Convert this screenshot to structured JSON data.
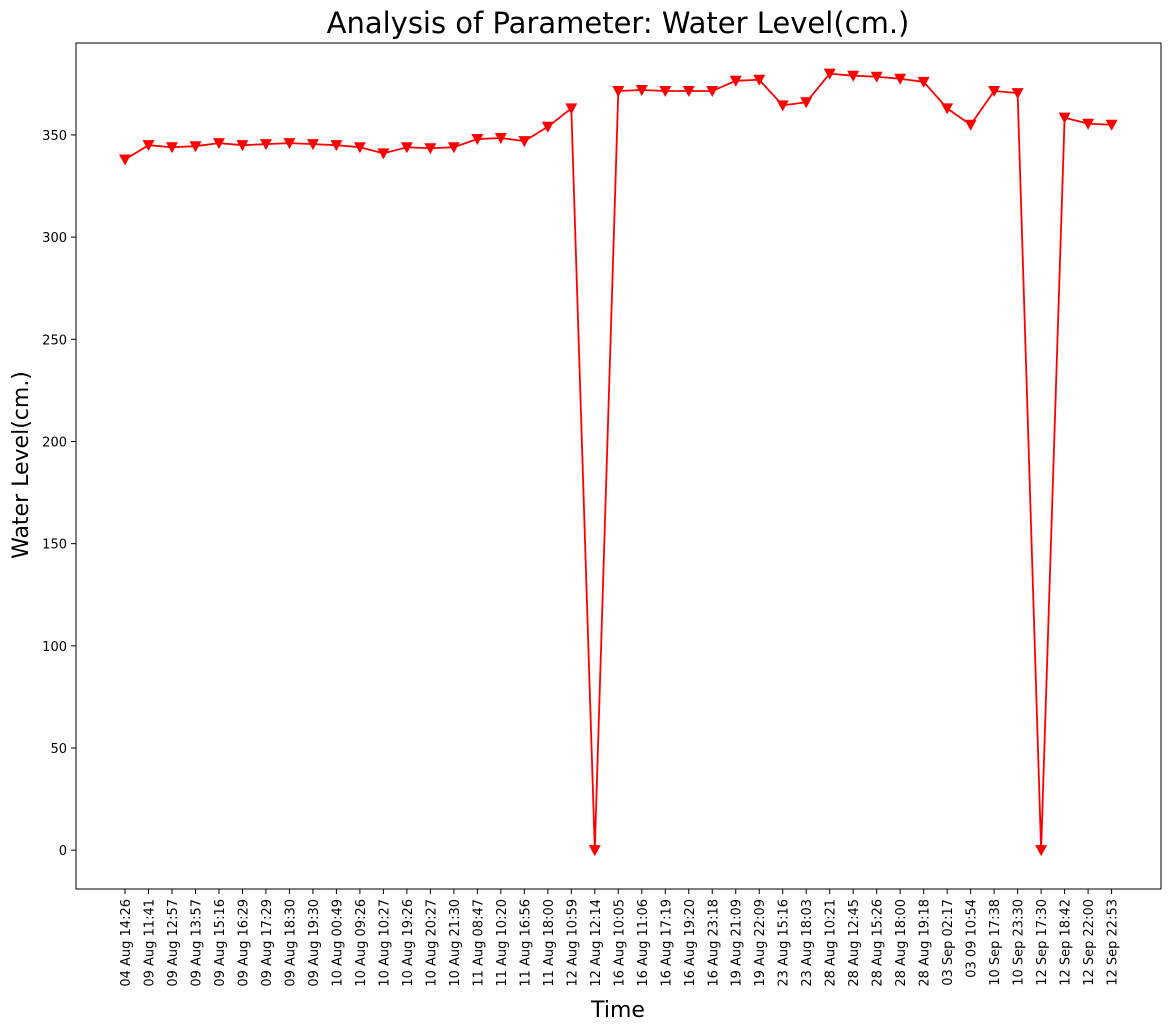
{
  "chart_data": {
    "type": "line",
    "title": "Analysis of Parameter: Water Level(cm.)",
    "xlabel": "Time",
    "ylabel": "Water Level(cm.)",
    "ylim": [
      -19,
      395
    ],
    "yticks": [
      0,
      50,
      100,
      150,
      200,
      250,
      300,
      350
    ],
    "grid": false,
    "legend": "none",
    "categories": [
      "04 Aug 14:26",
      "09 Aug 11:41",
      "09 Aug 12:57",
      "09 Aug 13:57",
      "09 Aug 15:16",
      "09 Aug 16:29",
      "09 Aug 17:29",
      "09 Aug 18:30",
      "09 Aug 19:30",
      "10 Aug 00:49",
      "10 Aug 09:26",
      "10 Aug 10:27",
      "10 Aug 19:26",
      "10 Aug 20:27",
      "10 Aug 21:30",
      "11 Aug 08:47",
      "11 Aug 10:20",
      "11 Aug 16:56",
      "11 Aug 18:00",
      "12 Aug 10:59",
      "12 Aug 12:14",
      "16 Aug 10:05",
      "16 Aug 11:06",
      "16 Aug 17:19",
      "16 Aug 19:20",
      "16 Aug 23:18",
      "19 Aug 21:09",
      "19 Aug 22:09",
      "23 Aug 15:16",
      "23 Aug 18:03",
      "28 Aug 10:21",
      "28 Aug 12:45",
      "28 Aug 15:26",
      "28 Aug 18:00",
      "28 Aug 19:18",
      "03 Sep 02:17",
      "03 09 10:54",
      "10 Sep 17:38",
      "10 Sep 23:30",
      "12 Sep 17:30",
      "12 Sep 18:42",
      "12 Sep 22:00",
      "12 Sep 22:53"
    ],
    "series": [
      {
        "color": "#ff0000",
        "marker": "triangle-down",
        "values": [
          338,
          345,
          344,
          344.5,
          346,
          345,
          345.5,
          346,
          345.5,
          345,
          344,
          341,
          344,
          343.5,
          344,
          348,
          348.5,
          347,
          354,
          363,
          0,
          371.5,
          372,
          371.5,
          371.5,
          371.5,
          376.5,
          377,
          364.5,
          366,
          380,
          379,
          378.5,
          377.5,
          376,
          363,
          355,
          371.5,
          370.5,
          0,
          358.5,
          355.5,
          355
        ]
      }
    ]
  }
}
